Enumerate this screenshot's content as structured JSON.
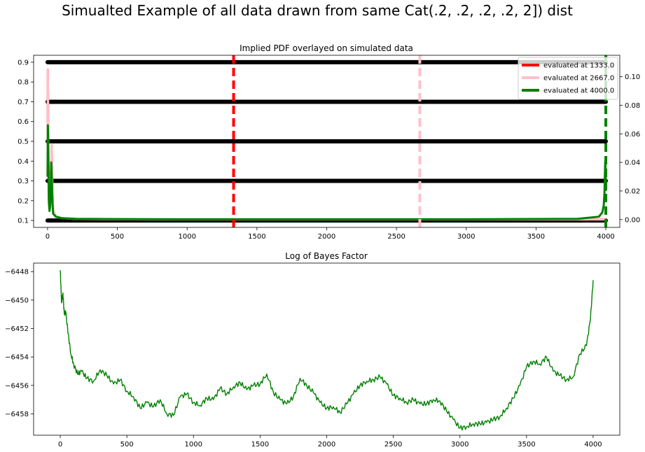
{
  "figure": {
    "suptitle": "Simualted Example of all data drawn from same Cat(.2, .2, .2, .2, 2]) dist"
  },
  "chart_data": [
    {
      "type": "scatter",
      "title": "Implied PDF overlayed on simulated data",
      "xlim": [
        -100,
        4100
      ],
      "ylim": [
        0.065,
        0.935
      ],
      "y2lim": [
        -0.0055,
        0.115
      ],
      "x_ticks": [
        "0",
        "500",
        "1000",
        "1500",
        "2000",
        "2500",
        "3000",
        "3500",
        "4000"
      ],
      "y_ticks": [
        "0.1",
        "0.2",
        "0.3",
        "0.4",
        "0.5",
        "0.6",
        "0.7",
        "0.8",
        "0.9"
      ],
      "y2_ticks": [
        "0.00",
        "0.02",
        "0.04",
        "0.06",
        "0.08",
        "0.10"
      ],
      "scatter_levels": [
        0.1,
        0.3,
        0.5,
        0.7,
        0.9
      ],
      "scatter_x_range": [
        0,
        4000
      ],
      "scatter_color": "#000000",
      "vlines": [
        {
          "x": 1333.0,
          "color": "#ff0000"
        },
        {
          "x": 2667.0,
          "color": "#ffc0cb"
        },
        {
          "x": 4000.0,
          "color": "#008000"
        }
      ],
      "series": [
        {
          "name": "evaluated at 1333.0",
          "color": "#ff0000",
          "x": [
            0,
            2,
            4,
            6,
            8,
            10,
            14,
            18,
            22,
            26,
            30,
            35,
            40,
            60,
            100,
            200,
            400,
            800,
            1500,
            2500,
            3500,
            4000
          ],
          "values": [
            0.03,
            0.105,
            0.08,
            0.04,
            0.025,
            0.012,
            0.01,
            0.011,
            0.03,
            0.036,
            0.052,
            0.02,
            0.006,
            0.002,
            0.001,
            0.0004,
            0.0002,
            0.0001,
            0.0001,
            0.0001,
            0.0001,
            0.0001
          ]
        },
        {
          "name": "evaluated at 2667.0",
          "color": "#ffc0cb",
          "x": [
            0,
            2,
            4,
            6,
            8,
            10,
            14,
            18,
            22,
            26,
            30,
            35,
            40,
            60,
            100,
            200,
            400,
            800,
            1500,
            2500,
            3500,
            4000
          ],
          "values": [
            0.03,
            0.105,
            0.08,
            0.04,
            0.025,
            0.012,
            0.01,
            0.011,
            0.03,
            0.036,
            0.052,
            0.02,
            0.006,
            0.002,
            0.001,
            0.0004,
            0.0002,
            0.0001,
            0.0001,
            0.0001,
            0.0001,
            0.0001
          ]
        },
        {
          "name": "evaluated at 4000.0",
          "color": "#008000",
          "x": [
            0,
            2,
            4,
            6,
            8,
            10,
            14,
            18,
            22,
            26,
            30,
            35,
            40,
            60,
            100,
            200,
            500,
            1000,
            2000,
            3000,
            3800,
            3950,
            3975,
            3985,
            3990,
            3993,
            3996,
            3998,
            4000
          ],
          "values": [
            0.03,
            0.066,
            0.06,
            0.04,
            0.022,
            0.011,
            0.006,
            0.009,
            0.018,
            0.04,
            0.03,
            0.012,
            0.004,
            0.002,
            0.001,
            0.0005,
            0.0003,
            0.0002,
            0.0002,
            0.0002,
            0.0005,
            0.002,
            0.005,
            0.01,
            0.018,
            0.03,
            0.041,
            0.035,
            0.02
          ]
        }
      ],
      "legend": {
        "placement": "top-right",
        "entries": [
          "evaluated at 1333.0",
          "evaluated at 2667.0",
          "evaluated at 4000.0"
        ]
      }
    },
    {
      "type": "line",
      "title": "Log of Bayes Factor",
      "xlim": [
        -200,
        4200
      ],
      "ylim": [
        -6459.5,
        -6447.4
      ],
      "x_ticks": [
        "0",
        "500",
        "1000",
        "1500",
        "2000",
        "2500",
        "3000",
        "3500",
        "4000"
      ],
      "y_ticks": [
        "−6448",
        "−6450",
        "−6452",
        "−6454",
        "−6456",
        "−6458"
      ],
      "series": [
        {
          "color": "#008000",
          "x": [
            0,
            10,
            20,
            30,
            40,
            60,
            80,
            100,
            130,
            160,
            200,
            250,
            300,
            350,
            400,
            450,
            500,
            550,
            600,
            650,
            700,
            750,
            800,
            850,
            900,
            950,
            1000,
            1050,
            1100,
            1150,
            1200,
            1250,
            1300,
            1350,
            1400,
            1450,
            1500,
            1550,
            1600,
            1650,
            1700,
            1750,
            1800,
            1850,
            1900,
            1950,
            2000,
            2050,
            2100,
            2150,
            2200,
            2250,
            2300,
            2350,
            2400,
            2450,
            2500,
            2550,
            2600,
            2650,
            2700,
            2750,
            2800,
            2850,
            2900,
            2950,
            3000,
            3050,
            3100,
            3150,
            3200,
            3250,
            3300,
            3350,
            3400,
            3450,
            3500,
            3550,
            3600,
            3650,
            3700,
            3750,
            3800,
            3850,
            3900,
            3950,
            3980,
            4000
          ],
          "values": [
            -6447.9,
            -6450.2,
            -6449.5,
            -6451.0,
            -6450.8,
            -6452.4,
            -6453.8,
            -6454.5,
            -6455.2,
            -6455.0,
            -6455.5,
            -6455.7,
            -6454.9,
            -6455.3,
            -6455.9,
            -6455.6,
            -6456.4,
            -6456.8,
            -6457.6,
            -6457.2,
            -6457.5,
            -6457.0,
            -6458.0,
            -6458.1,
            -6456.8,
            -6456.6,
            -6457.2,
            -6457.4,
            -6456.9,
            -6457.0,
            -6456.2,
            -6456.6,
            -6456.1,
            -6455.8,
            -6456.3,
            -6456.0,
            -6455.9,
            -6455.2,
            -6456.5,
            -6457.0,
            -6457.3,
            -6456.8,
            -6455.5,
            -6456.0,
            -6456.5,
            -6457.2,
            -6457.6,
            -6457.5,
            -6457.9,
            -6457.3,
            -6456.6,
            -6456.0,
            -6455.7,
            -6455.6,
            -6455.4,
            -6455.9,
            -6456.7,
            -6456.9,
            -6457.2,
            -6457.0,
            -6457.3,
            -6457.3,
            -6457.0,
            -6457.1,
            -6457.8,
            -6458.4,
            -6459.0,
            -6458.9,
            -6458.7,
            -6458.7,
            -6458.6,
            -6458.4,
            -6458.2,
            -6457.6,
            -6456.9,
            -6456.0,
            -6454.7,
            -6454.3,
            -6454.5,
            -6454.0,
            -6455.0,
            -6455.3,
            -6455.6,
            -6455.4,
            -6453.8,
            -6453.2,
            -6451.3,
            -6448.6
          ]
        }
      ]
    }
  ]
}
